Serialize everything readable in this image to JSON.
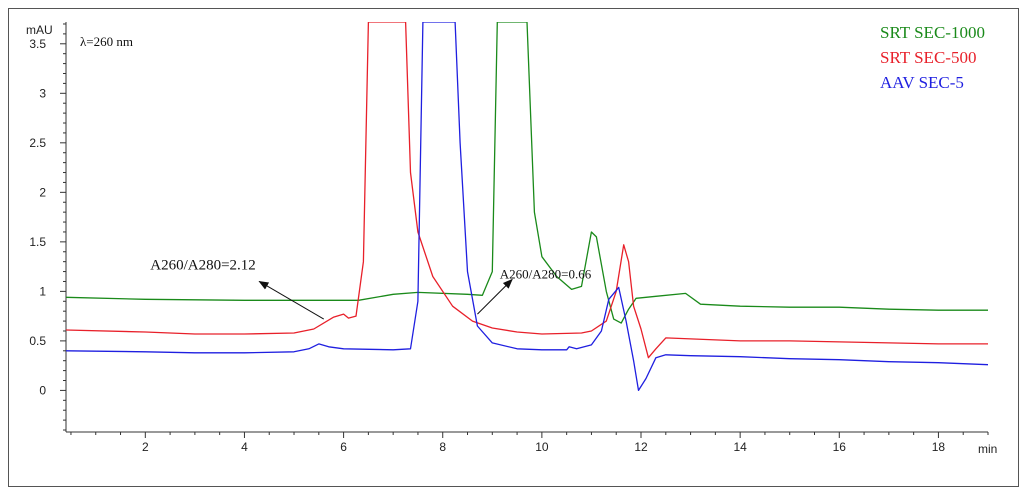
{
  "chart_data": {
    "type": "line",
    "ylabel": "mAU",
    "xlabel": "min",
    "xlim": [
      0.4,
      19.0
    ],
    "ylim": [
      -0.42,
      3.72
    ],
    "x_ticks": [
      2,
      4,
      6,
      8,
      10,
      12,
      14,
      16,
      18
    ],
    "y_ticks": [
      0,
      0.5,
      1,
      1.5,
      2,
      2.5,
      3,
      3.5
    ],
    "y_tick_labels": [
      "0",
      "0.5",
      "1",
      "1.5",
      "2",
      "2.5",
      "3",
      "3.5"
    ],
    "wavelength_label": "λ=260 nm",
    "legend": [
      "SRT SEC-1000",
      "SRT SEC-500",
      "AAV SEC-5"
    ],
    "legend_position": "top-right",
    "colors": {
      "SRT SEC-1000": "#1a8a1a",
      "SRT SEC-500": "#e8202a",
      "AAV SEC-5": "#1f1fe0"
    },
    "series": [
      {
        "name": "SRT SEC-1000",
        "points": [
          [
            0.4,
            0.94
          ],
          [
            2,
            0.92
          ],
          [
            4,
            0.91
          ],
          [
            5.5,
            0.91
          ],
          [
            6.3,
            0.91
          ],
          [
            7,
            0.97
          ],
          [
            7.5,
            0.99
          ],
          [
            8.5,
            0.97
          ],
          [
            8.8,
            0.96
          ],
          [
            9.0,
            1.2
          ],
          [
            9.1,
            3.72
          ],
          [
            9.7,
            3.72
          ],
          [
            9.85,
            1.8
          ],
          [
            10.0,
            1.35
          ],
          [
            10.3,
            1.15
          ],
          [
            10.6,
            1.02
          ],
          [
            10.8,
            1.05
          ],
          [
            11.0,
            1.6
          ],
          [
            11.1,
            1.55
          ],
          [
            11.3,
            1.0
          ],
          [
            11.45,
            0.72
          ],
          [
            11.6,
            0.68
          ],
          [
            11.75,
            0.82
          ],
          [
            11.9,
            0.93
          ],
          [
            12.3,
            0.95
          ],
          [
            12.9,
            0.98
          ],
          [
            13.2,
            0.87
          ],
          [
            14,
            0.85
          ],
          [
            15,
            0.84
          ],
          [
            16,
            0.84
          ],
          [
            17,
            0.82
          ],
          [
            18,
            0.81
          ],
          [
            19,
            0.81
          ]
        ]
      },
      {
        "name": "SRT SEC-500",
        "points": [
          [
            0.4,
            0.61
          ],
          [
            2,
            0.59
          ],
          [
            3,
            0.57
          ],
          [
            4,
            0.57
          ],
          [
            5,
            0.58
          ],
          [
            5.4,
            0.62
          ],
          [
            5.8,
            0.74
          ],
          [
            6.0,
            0.77
          ],
          [
            6.1,
            0.73
          ],
          [
            6.25,
            0.75
          ],
          [
            6.4,
            1.3
          ],
          [
            6.5,
            3.72
          ],
          [
            7.25,
            3.72
          ],
          [
            7.35,
            2.2
          ],
          [
            7.5,
            1.6
          ],
          [
            7.8,
            1.15
          ],
          [
            8.2,
            0.85
          ],
          [
            8.6,
            0.7
          ],
          [
            9.0,
            0.63
          ],
          [
            9.5,
            0.59
          ],
          [
            10.0,
            0.57
          ],
          [
            10.8,
            0.58
          ],
          [
            11.0,
            0.6
          ],
          [
            11.3,
            0.7
          ],
          [
            11.5,
            1.0
          ],
          [
            11.65,
            1.47
          ],
          [
            11.75,
            1.3
          ],
          [
            11.85,
            0.85
          ],
          [
            12.0,
            0.62
          ],
          [
            12.15,
            0.33
          ],
          [
            12.3,
            0.42
          ],
          [
            12.5,
            0.53
          ],
          [
            13,
            0.52
          ],
          [
            14,
            0.5
          ],
          [
            15,
            0.5
          ],
          [
            16,
            0.49
          ],
          [
            17,
            0.48
          ],
          [
            18,
            0.47
          ],
          [
            19,
            0.47
          ]
        ]
      },
      {
        "name": "AAV SEC-5",
        "points": [
          [
            0.4,
            0.4
          ],
          [
            2,
            0.39
          ],
          [
            3,
            0.38
          ],
          [
            4,
            0.38
          ],
          [
            5,
            0.39
          ],
          [
            5.3,
            0.42
          ],
          [
            5.5,
            0.47
          ],
          [
            5.7,
            0.44
          ],
          [
            6,
            0.42
          ],
          [
            7,
            0.41
          ],
          [
            7.35,
            0.42
          ],
          [
            7.5,
            0.9
          ],
          [
            7.6,
            3.72
          ],
          [
            8.25,
            3.72
          ],
          [
            8.35,
            2.5
          ],
          [
            8.5,
            1.2
          ],
          [
            8.7,
            0.65
          ],
          [
            9.0,
            0.48
          ],
          [
            9.5,
            0.42
          ],
          [
            10.0,
            0.41
          ],
          [
            10.5,
            0.41
          ],
          [
            10.55,
            0.44
          ],
          [
            10.7,
            0.42
          ],
          [
            11.0,
            0.46
          ],
          [
            11.2,
            0.6
          ],
          [
            11.35,
            0.92
          ],
          [
            11.55,
            1.04
          ],
          [
            11.7,
            0.7
          ],
          [
            11.85,
            0.3
          ],
          [
            11.95,
            0.0
          ],
          [
            12.1,
            0.12
          ],
          [
            12.3,
            0.33
          ],
          [
            12.5,
            0.36
          ],
          [
            13,
            0.35
          ],
          [
            14,
            0.34
          ],
          [
            15,
            0.32
          ],
          [
            16,
            0.31
          ],
          [
            17,
            0.29
          ],
          [
            18,
            0.28
          ],
          [
            19,
            0.26
          ]
        ]
      }
    ],
    "annotations": [
      {
        "text": "A260/A280=2.12",
        "text_at": [
          2.1,
          1.22
        ],
        "arrow_from": [
          5.6,
          0.72
        ],
        "arrow_to": [
          4.3,
          1.1
        ],
        "size": 15
      },
      {
        "text": "A260/A280=0.66",
        "text_at": [
          9.15,
          1.13
        ],
        "arrow_from": [
          8.7,
          0.77
        ],
        "arrow_to": [
          9.4,
          1.12
        ],
        "size": 13
      }
    ]
  }
}
